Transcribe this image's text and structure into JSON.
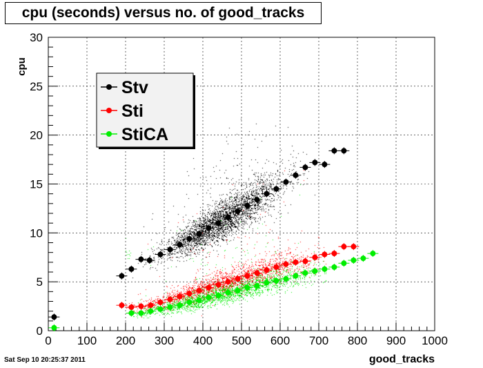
{
  "header": {
    "title": "cpu (seconds) versus no. of good_tracks",
    "timestamp": "Sat Sep 10 20:25:37 2011"
  },
  "chart_data": {
    "type": "scatter",
    "title": "cpu (seconds) versus no. of good_tracks",
    "xlabel": "good_tracks",
    "ylabel": "cpu",
    "xlim": [
      0,
      1000
    ],
    "ylim": [
      0,
      30
    ],
    "xticks": [
      0,
      100,
      200,
      300,
      400,
      500,
      600,
      700,
      800,
      900,
      1000
    ],
    "yticks": [
      0,
      5,
      10,
      15,
      20,
      25,
      30
    ],
    "grid": true,
    "legend_position": "top-left",
    "series": [
      {
        "name": "Stv",
        "color": "#000000",
        "points": [
          [
            15,
            1.4
          ],
          [
            190,
            5.6
          ],
          [
            215,
            6.3
          ],
          [
            240,
            7.3
          ],
          [
            262,
            7.2
          ],
          [
            290,
            7.8
          ],
          [
            315,
            8.3
          ],
          [
            340,
            8.8
          ],
          [
            365,
            9.4
          ],
          [
            390,
            9.9
          ],
          [
            415,
            10.5
          ],
          [
            440,
            11.0
          ],
          [
            465,
            11.6
          ],
          [
            490,
            12.2
          ],
          [
            515,
            12.8
          ],
          [
            540,
            13.4
          ],
          [
            565,
            14.0
          ],
          [
            590,
            14.5
          ],
          [
            615,
            15.2
          ],
          [
            640,
            15.9
          ],
          [
            665,
            16.7
          ],
          [
            690,
            17.2
          ],
          [
            715,
            17.0
          ],
          [
            740,
            18.4
          ],
          [
            765,
            18.4
          ]
        ]
      },
      {
        "name": "Sti",
        "color": "#ff0000",
        "points": [
          [
            190,
            2.6
          ],
          [
            215,
            2.4
          ],
          [
            240,
            2.5
          ],
          [
            265,
            2.6
          ],
          [
            290,
            2.9
          ],
          [
            315,
            3.2
          ],
          [
            340,
            3.5
          ],
          [
            365,
            3.8
          ],
          [
            390,
            4.1
          ],
          [
            415,
            4.4
          ],
          [
            440,
            4.7
          ],
          [
            465,
            5.0
          ],
          [
            490,
            5.3
          ],
          [
            515,
            5.6
          ],
          [
            540,
            5.9
          ],
          [
            565,
            6.2
          ],
          [
            590,
            6.5
          ],
          [
            615,
            6.8
          ],
          [
            640,
            7.0
          ],
          [
            665,
            7.1
          ],
          [
            690,
            7.5
          ],
          [
            715,
            7.8
          ],
          [
            740,
            7.9
          ],
          [
            765,
            8.6
          ],
          [
            790,
            8.6
          ]
        ]
      },
      {
        "name": "StiCA",
        "color": "#00ee00",
        "points": [
          [
            15,
            0.3
          ],
          [
            215,
            1.8
          ],
          [
            240,
            1.8
          ],
          [
            265,
            2.0
          ],
          [
            290,
            2.2
          ],
          [
            315,
            2.4
          ],
          [
            340,
            2.6
          ],
          [
            365,
            2.9
          ],
          [
            390,
            3.1
          ],
          [
            415,
            3.4
          ],
          [
            440,
            3.6
          ],
          [
            465,
            3.9
          ],
          [
            490,
            4.1
          ],
          [
            515,
            4.4
          ],
          [
            540,
            4.6
          ],
          [
            565,
            4.9
          ],
          [
            590,
            5.1
          ],
          [
            615,
            5.3
          ],
          [
            640,
            5.6
          ],
          [
            665,
            5.9
          ],
          [
            690,
            6.1
          ],
          [
            715,
            6.3
          ],
          [
            740,
            6.5
          ],
          [
            765,
            6.9
          ],
          [
            790,
            7.2
          ],
          [
            815,
            7.4
          ],
          [
            840,
            7.9
          ]
        ]
      }
    ]
  }
}
